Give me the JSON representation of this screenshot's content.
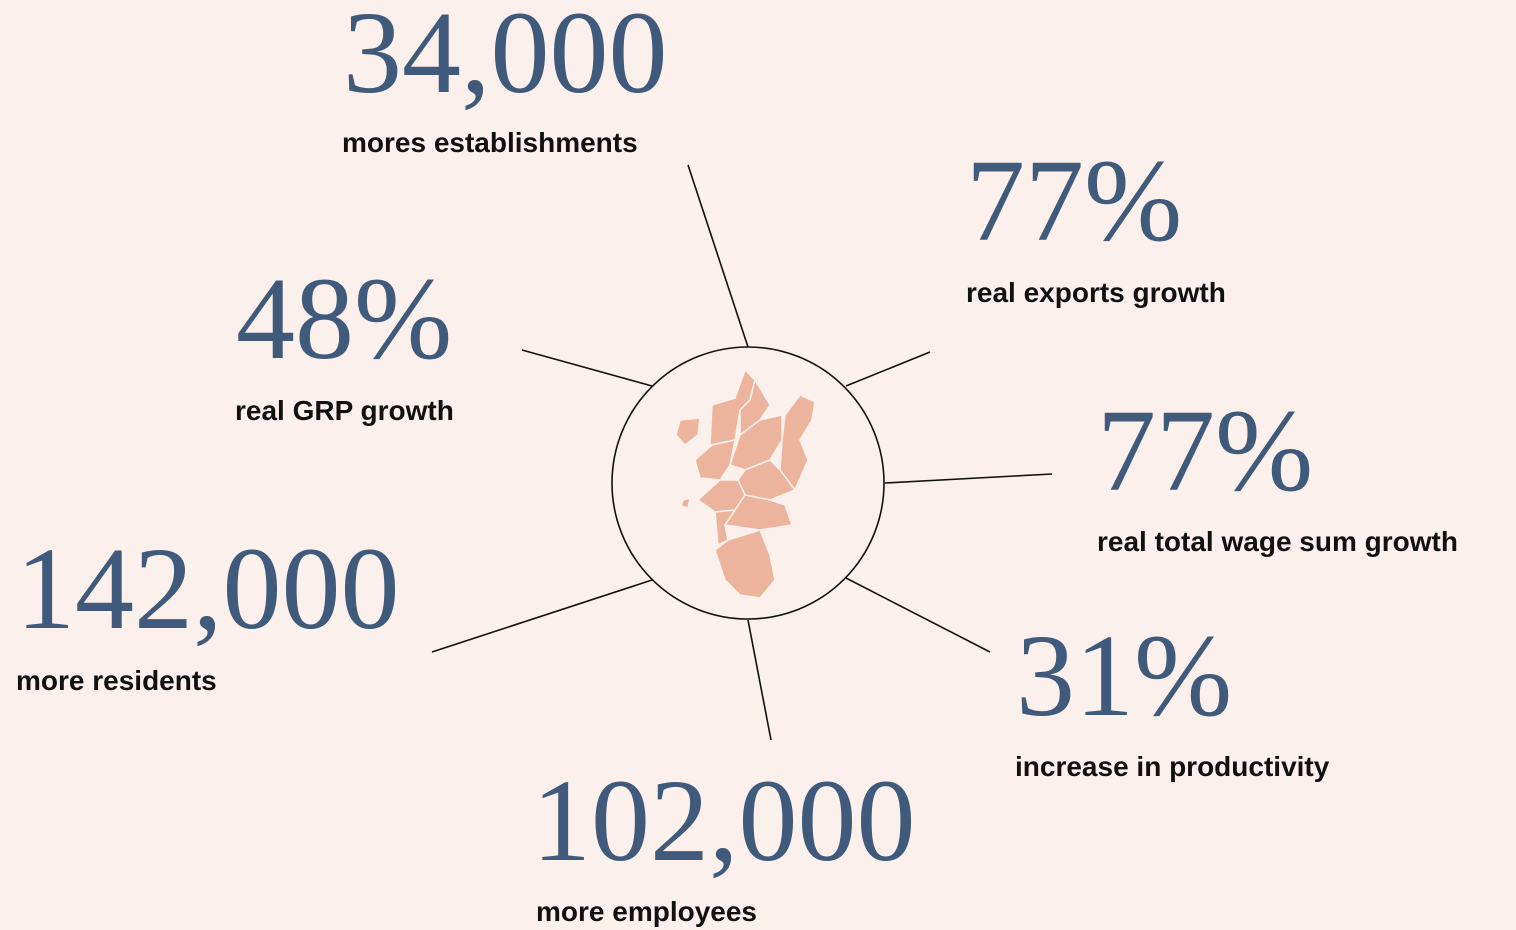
{
  "stats": [
    {
      "value": "34,000",
      "label": "mores establishments"
    },
    {
      "value": "77%",
      "label": "real exports growth"
    },
    {
      "value": "48%",
      "label": "real GRP growth"
    },
    {
      "value": "77%",
      "label": "real total wage sum growth"
    },
    {
      "value": "142,000",
      "label": "more residents"
    },
    {
      "value": "31%",
      "label": "increase in productivity"
    },
    {
      "value": "102,000",
      "label": "more employees"
    }
  ]
}
